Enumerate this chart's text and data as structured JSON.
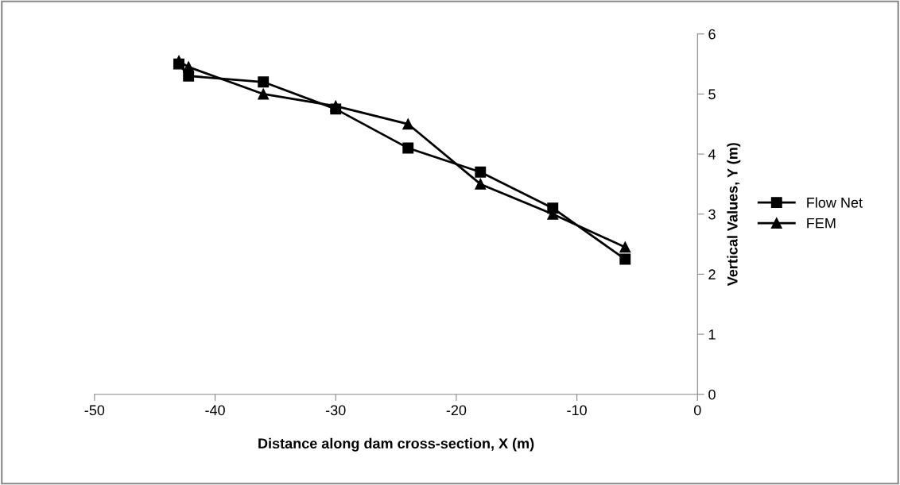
{
  "chart_data": {
    "type": "line",
    "xlabel": "Distance along dam cross-section, X (m)",
    "ylabel": "Vertical Values, Y (m)",
    "xlim": [
      -50,
      0
    ],
    "xticks": [
      -50,
      -40,
      -30,
      -20,
      -10,
      0
    ],
    "ylim": [
      0,
      6
    ],
    "yticks": [
      0,
      1,
      2,
      3,
      4,
      5,
      6
    ],
    "grid": false,
    "legend": "right",
    "line_style": "solid",
    "series": [
      {
        "name": "Flow Net",
        "color": "#000000",
        "marker": "square",
        "x": [
          -43,
          -42.2,
          -36,
          -30,
          -24,
          -18,
          -12,
          -6
        ],
        "values": [
          5.5,
          5.3,
          5.2,
          4.75,
          4.1,
          3.7,
          3.1,
          2.25
        ]
      },
      {
        "name": "FEM",
        "color": "#000000",
        "marker": "triangle",
        "x": [
          -43,
          -42.2,
          -36,
          -30,
          -24,
          -18,
          -12,
          -6
        ],
        "values": [
          5.55,
          5.45,
          5.0,
          4.8,
          4.5,
          3.5,
          3.0,
          2.45
        ]
      }
    ]
  }
}
